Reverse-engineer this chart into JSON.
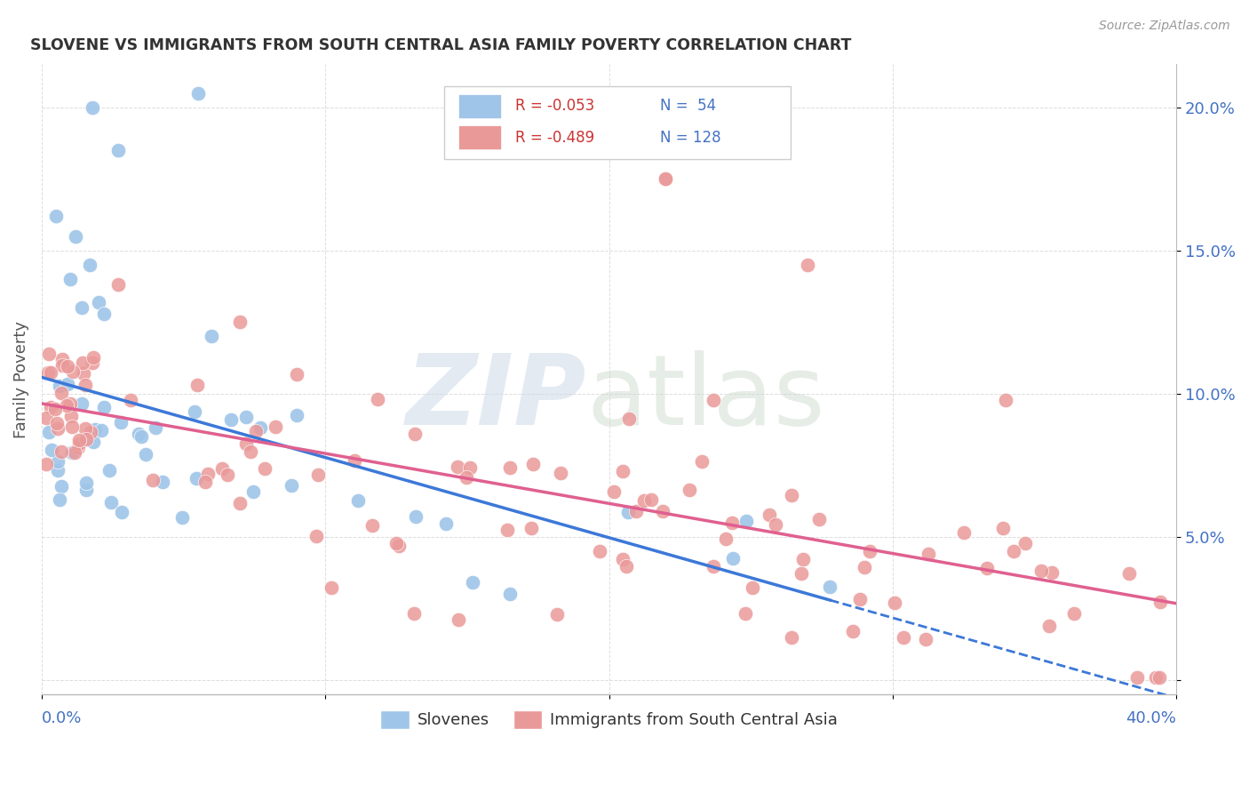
{
  "title": "SLOVENE VS IMMIGRANTS FROM SOUTH CENTRAL ASIA FAMILY POVERTY CORRELATION CHART",
  "source": "Source: ZipAtlas.com",
  "ylabel": "Family Poverty",
  "ytick_values": [
    0.0,
    0.05,
    0.1,
    0.15,
    0.2
  ],
  "ytick_labels": [
    "",
    "5.0%",
    "10.0%",
    "15.0%",
    "20.0%"
  ],
  "xmin": 0.0,
  "xmax": 0.4,
  "ymin": -0.005,
  "ymax": 0.215,
  "blue_R": "-0.053",
  "blue_N": "54",
  "pink_R": "-0.489",
  "pink_N": "128",
  "blue_scatter_color": "#9fc5e8",
  "pink_scatter_color": "#ea9999",
  "blue_line_color": "#3c78d8",
  "pink_line_color": "#e06090",
  "grid_color": "#dddddd",
  "title_color": "#333333",
  "ytick_color": "#4472c4",
  "xtick_color": "#4472c4",
  "source_color": "#999999",
  "watermark_color1": "#ccd9e8",
  "watermark_color2": "#c8d8c8"
}
